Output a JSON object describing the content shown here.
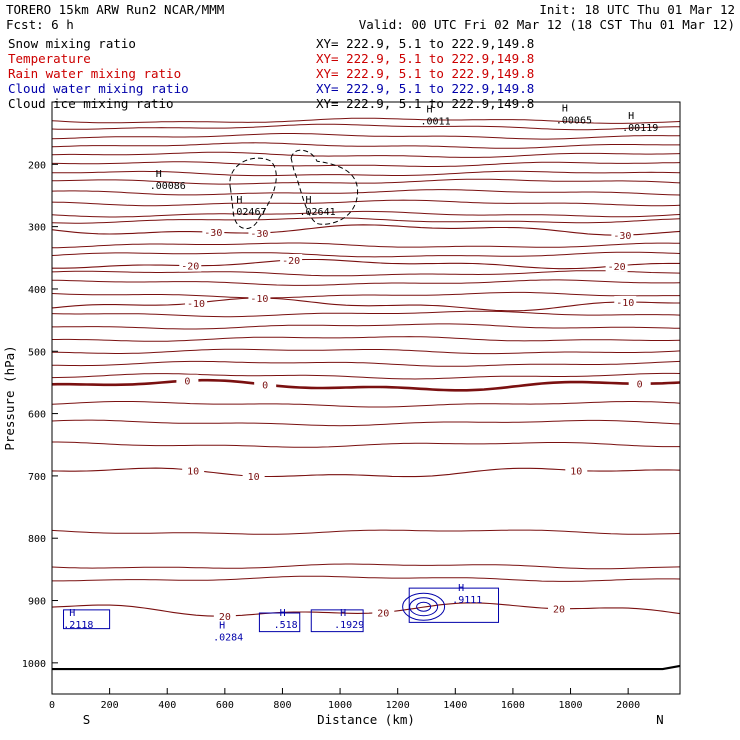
{
  "header": {
    "title_left": "TORERO  15km ARW   Run2   NCAR/MMM",
    "init": "Init: 18 UTC Thu 01 Mar 12",
    "fcst": "Fcst:    6 h",
    "valid": "Valid: 00 UTC Fri 02 Mar 12 (18 CST Thu 01 Mar 12)"
  },
  "legend": [
    {
      "label": "Snow mixing ratio",
      "xy": "XY= 222.9,  5.1 to 222.9,149.8",
      "color": "#000000"
    },
    {
      "label": "Temperature",
      "xy": "XY= 222.9,  5.1 to 222.9,149.8",
      "color": "#cc0000"
    },
    {
      "label": "Rain water mixing ratio",
      "xy": "XY= 222.9,  5.1 to 222.9,149.8",
      "color": "#cc0000"
    },
    {
      "label": "Cloud water mixing ratio",
      "xy": "XY= 222.9,  5.1 to 222.9,149.8",
      "color": "#0000aa"
    },
    {
      "label": "Cloud ice mixing ratio",
      "xy": "XY= 222.9,  5.1 to 222.9,149.8",
      "color": "#000000"
    }
  ],
  "chart_data": {
    "type": "cross-section",
    "xlabel": "Distance (km)",
    "ylabel": "Pressure (hPa)",
    "xlim": [
      0,
      2180
    ],
    "ylim": [
      1050,
      100
    ],
    "x_ticks": [
      0,
      200,
      400,
      600,
      800,
      1000,
      1200,
      1400,
      1600,
      1800,
      2000
    ],
    "y_ticks": [
      200,
      300,
      400,
      500,
      600,
      700,
      800,
      900,
      1000
    ],
    "x_end_labels": {
      "left": "S",
      "right": "N"
    },
    "temperature_contours": [
      {
        "label": "-30",
        "base": 305,
        "amp": 6,
        "bold": false,
        "labels_at": [
          560,
          720,
          1980
        ]
      },
      {
        "label": "-20",
        "base": 360,
        "amp": 5,
        "bold": false,
        "labels_at": [
          480,
          830,
          1960
        ]
      },
      {
        "label": "-10",
        "base": 425,
        "amp": 7,
        "bold": false,
        "labels_at": [
          500,
          720,
          1990
        ]
      },
      {
        "label": "0",
        "base": 555,
        "amp": 6,
        "bold": true,
        "labels_at": [
          470,
          740,
          2040
        ]
      },
      {
        "label": "10",
        "base": 695,
        "amp": 6,
        "bold": false,
        "labels_at": [
          490,
          700,
          1820
        ]
      },
      {
        "label": "20",
        "base": 915,
        "amp": 8,
        "bold": false,
        "labels_at": [
          600,
          1150,
          1760
        ]
      }
    ],
    "extra_isotherm_bases": [
      130,
      140,
      155,
      170,
      185,
      200,
      215,
      228,
      245,
      262,
      280,
      290,
      330,
      345,
      375,
      390,
      410,
      440,
      460,
      480,
      500,
      520,
      540,
      585,
      615,
      650,
      790,
      845,
      865
    ],
    "annotations": [
      {
        "text": "H",
        "sub": ".00086",
        "x": 360,
        "p": 220
      },
      {
        "text": "H",
        "sub": ".02467",
        "x": 640,
        "p": 262
      },
      {
        "text": "H",
        "sub": ".02641",
        "x": 880,
        "p": 262
      },
      {
        "text": "H",
        "sub": ".00119",
        "x": 2000,
        "p": 127
      },
      {
        "text": "H",
        "sub": ".0011",
        "x": 1300,
        "p": 117
      },
      {
        "text": "H",
        "sub": ".00065",
        "x": 1770,
        "p": 115
      },
      {
        "text": "H",
        "sub": ".2118",
        "x": 60,
        "p": 925
      },
      {
        "text": "H",
        "sub": ".0284",
        "x": 580,
        "p": 945
      },
      {
        "text": "H",
        "sub": ".518",
        "x": 790,
        "p": 925
      },
      {
        "text": "H",
        "sub": ".1929",
        "x": 1000,
        "p": 925
      },
      {
        "text": "H",
        "sub": ".9111",
        "x": 1410,
        "p": 885
      }
    ],
    "ice_outline_label": "Cloud ice mixing ratio",
    "cloud_water_label": "Cloud water mixing ratio",
    "ground_pressure": 1010
  }
}
